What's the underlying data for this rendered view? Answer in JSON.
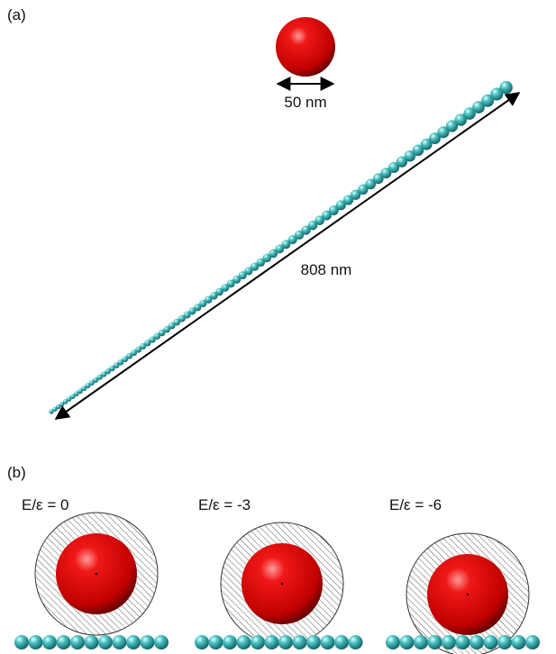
{
  "panel_a": {
    "label": "(a)",
    "sphere_size": "50 nm",
    "chain_length": "808 nm"
  },
  "panel_b": {
    "label": "(b)",
    "cases": [
      {
        "label": "E/ε = 0"
      },
      {
        "label": "E/ε = -3"
      },
      {
        "label": "E/ε = -6"
      }
    ]
  }
}
